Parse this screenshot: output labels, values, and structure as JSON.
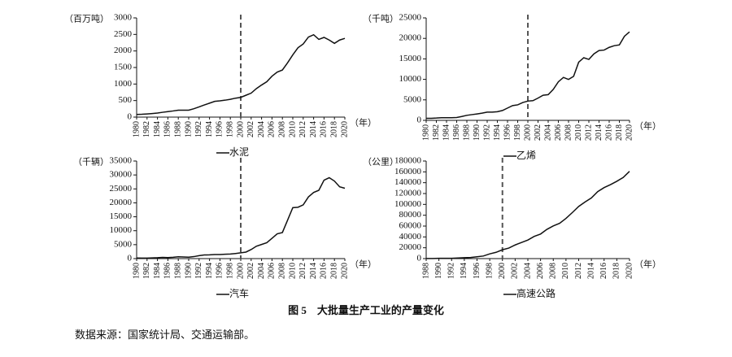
{
  "chart_data": [
    {
      "type": "line",
      "y_label": "（百万吨）",
      "x_label": "（年）",
      "x": [
        1980,
        1981,
        1982,
        1983,
        1984,
        1985,
        1986,
        1987,
        1988,
        1989,
        1990,
        1991,
        1992,
        1993,
        1994,
        1995,
        1996,
        1997,
        1998,
        1999,
        2000,
        2001,
        2002,
        2003,
        2004,
        2005,
        2006,
        2007,
        2008,
        2009,
        2010,
        2011,
        2012,
        2013,
        2014,
        2015,
        2016,
        2017,
        2018,
        2019,
        2020
      ],
      "series": [
        {
          "name": "水泥",
          "color": "#111111",
          "values": [
            80,
            85,
            95,
            108,
            123,
            146,
            166,
            186,
            210,
            210,
            210,
            253,
            308,
            367,
            421,
            476,
            491,
            512,
            537,
            573,
            597,
            661,
            725,
            862,
            970,
            1069,
            1237,
            1361,
            1424,
            1644,
            1882,
            2099,
            2210,
            2420,
            2490,
            2350,
            2410,
            2330,
            2230,
            2330,
            2380
          ]
        }
      ],
      "xlim": [
        1980,
        2020
      ],
      "xticks": [
        1980,
        1982,
        1984,
        1986,
        1988,
        1990,
        1992,
        1994,
        1996,
        1998,
        2000,
        2002,
        2004,
        2006,
        2008,
        2010,
        2012,
        2014,
        2016,
        2018,
        2020
      ],
      "ylim": [
        0,
        3000
      ],
      "yticks": [
        0,
        500,
        1000,
        1500,
        2000,
        2500,
        3000
      ],
      "vline": 2000
    },
    {
      "type": "line",
      "y_label": "（千吨）",
      "x_label": "（年）",
      "x": [
        1980,
        1981,
        1982,
        1983,
        1984,
        1985,
        1986,
        1987,
        1988,
        1989,
        1990,
        1991,
        1992,
        1993,
        1994,
        1995,
        1996,
        1997,
        1998,
        1999,
        2000,
        2001,
        2002,
        2003,
        2004,
        2005,
        2006,
        2007,
        2008,
        2009,
        2010,
        2011,
        2012,
        2013,
        2014,
        2015,
        2016,
        2017,
        2018,
        2019,
        2020
      ],
      "series": [
        {
          "name": "乙烯",
          "color": "#111111",
          "values": [
            490,
            500,
            560,
            650,
            650,
            650,
            690,
            940,
            1230,
            1400,
            1570,
            1760,
            2000,
            2000,
            2100,
            2400,
            3000,
            3600,
            3780,
            4350,
            4700,
            4810,
            5430,
            6120,
            6270,
            7560,
            9410,
            10480,
            9980,
            10730,
            14190,
            15280,
            14870,
            16230,
            17040,
            17150,
            17810,
            18220,
            18410,
            20520,
            21600
          ]
        }
      ],
      "xlim": [
        1980,
        2020
      ],
      "xticks": [
        1980,
        1982,
        1984,
        1986,
        1988,
        1990,
        1992,
        1994,
        1996,
        1998,
        2000,
        2002,
        2004,
        2006,
        2008,
        2010,
        2012,
        2014,
        2016,
        2018,
        2020
      ],
      "ylim": [
        0,
        25000
      ],
      "yticks": [
        0,
        5000,
        10000,
        15000,
        20000,
        25000
      ],
      "vline": 2000
    },
    {
      "type": "line",
      "y_label": "（千辆）",
      "x_label": "（年）",
      "x": [
        1980,
        1981,
        1982,
        1983,
        1984,
        1985,
        1986,
        1987,
        1988,
        1989,
        1990,
        1991,
        1992,
        1993,
        1994,
        1995,
        1996,
        1997,
        1998,
        1999,
        2000,
        2001,
        2002,
        2003,
        2004,
        2005,
        2006,
        2007,
        2008,
        2009,
        2010,
        2011,
        2012,
        2013,
        2014,
        2015,
        2016,
        2017,
        2018,
        2019,
        2020
      ],
      "series": [
        {
          "name": "汽车",
          "color": "#111111",
          "values": [
            222,
            176,
            196,
            240,
            316,
            443,
            370,
            473,
            647,
            587,
            509,
            714,
            1062,
            1297,
            1353,
            1453,
            1475,
            1583,
            1630,
            1832,
            2069,
            2342,
            3253,
            4444,
            5071,
            5708,
            7280,
            8880,
            9345,
            13791,
            18265,
            18419,
            19272,
            22117,
            23723,
            24503,
            28119,
            29015,
            27809,
            25751,
            25225
          ]
        }
      ],
      "xlim": [
        1980,
        2020
      ],
      "xticks": [
        1980,
        1982,
        1984,
        1986,
        1988,
        1990,
        1992,
        1994,
        1996,
        1998,
        2000,
        2002,
        2004,
        2006,
        2008,
        2010,
        2012,
        2014,
        2016,
        2018,
        2020
      ],
      "ylim": [
        0,
        35000
      ],
      "yticks": [
        0,
        5000,
        10000,
        15000,
        20000,
        25000,
        30000,
        35000
      ],
      "vline": 2000
    },
    {
      "type": "line",
      "y_label": "（公里）",
      "x_label": "（年）",
      "x": [
        1988,
        1989,
        1990,
        1991,
        1992,
        1993,
        1994,
        1995,
        1996,
        1997,
        1998,
        1999,
        2000,
        2001,
        2002,
        2003,
        2004,
        2005,
        2006,
        2007,
        2008,
        2009,
        2010,
        2011,
        2012,
        2013,
        2014,
        2015,
        2016,
        2017,
        2018,
        2019,
        2020
      ],
      "series": [
        {
          "name": "高速公路",
          "color": "#111111",
          "values": [
            147,
            271,
            522,
            574,
            652,
            1145,
            1603,
            2141,
            3422,
            4771,
            8733,
            11605,
            16314,
            19437,
            25130,
            29745,
            34288,
            41005,
            45339,
            53913,
            60302,
            65055,
            74113,
            84946,
            96200,
            104438,
            111936,
            123523,
            130973,
            136449,
            142593,
            149571,
            160980
          ]
        }
      ],
      "xlim": [
        1988,
        2020
      ],
      "xticks": [
        1988,
        1990,
        1992,
        1994,
        1996,
        1998,
        2000,
        2002,
        2004,
        2006,
        2008,
        2010,
        2012,
        2014,
        2016,
        2018,
        2020
      ],
      "ylim": [
        0,
        180000
      ],
      "yticks": [
        0,
        20000,
        40000,
        60000,
        80000,
        100000,
        120000,
        140000,
        160000,
        180000
      ],
      "vline": 2000
    }
  ],
  "figure_caption": "图 5　大批量生产工业的产量变化",
  "source": "数据来源：国家统计局、交通运输部。"
}
